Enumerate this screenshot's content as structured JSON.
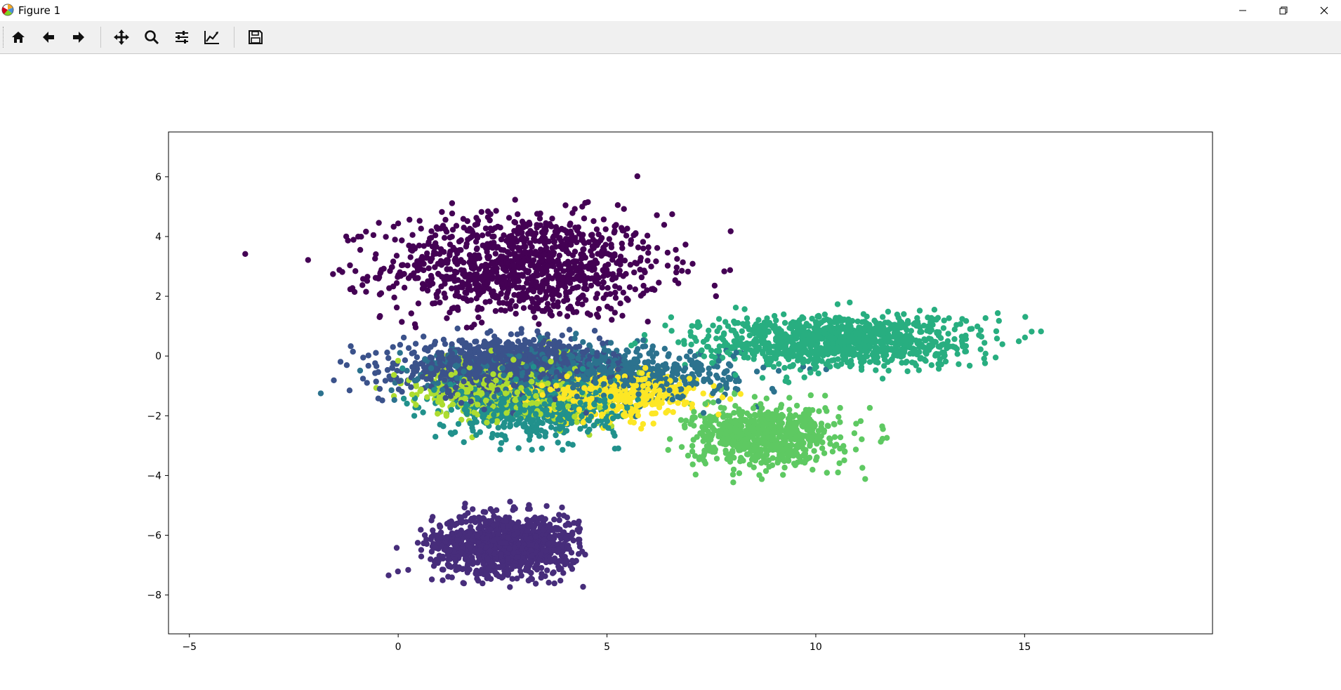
{
  "window": {
    "title": "Figure 1"
  },
  "toolbar": {
    "buttons": [
      {
        "name": "home-button",
        "icon": "home-icon"
      },
      {
        "name": "back-button",
        "icon": "arrow-left-icon"
      },
      {
        "name": "forward-button",
        "icon": "arrow-right-icon"
      },
      {
        "name": "pan-button",
        "icon": "move-icon"
      },
      {
        "name": "zoom-button",
        "icon": "magnifier-icon"
      },
      {
        "name": "subplots-button",
        "icon": "sliders-icon"
      },
      {
        "name": "edit-axis-button",
        "icon": "line-chart-icon"
      },
      {
        "name": "save-button",
        "icon": "floppy-disk-icon"
      }
    ]
  },
  "colors": {
    "series": [
      "#440154",
      "#472d7b",
      "#3b528b",
      "#2c728e",
      "#21918c",
      "#28ae80",
      "#5ec962",
      "#addc30",
      "#fde725"
    ]
  },
  "chart_data": {
    "type": "scatter",
    "title": "",
    "xlabel": "",
    "ylabel": "",
    "xlim": [
      -5.5,
      19.5
    ],
    "ylim": [
      -9.3,
      7.5
    ],
    "xticks": [
      -5,
      0,
      5,
      10,
      15
    ],
    "yticks": [
      -8,
      -6,
      -4,
      -2,
      0,
      2,
      4,
      6
    ],
    "grid": false,
    "legend": "none",
    "clusters": [
      {
        "color_index": 0,
        "count": 1100,
        "center": [
          3.0,
          3.0
        ],
        "spread": [
          3.0,
          1.6
        ],
        "x_range": [
          -3.8,
          8.5
        ],
        "y_range": [
          0.9,
          6.8
        ]
      },
      {
        "color_index": 1,
        "count": 1100,
        "center": [
          2.6,
          -6.3
        ],
        "spread": [
          1.6,
          0.9
        ],
        "x_range": [
          -2.7,
          4.5
        ],
        "y_range": [
          -8.6,
          -3.3
        ]
      },
      {
        "color_index": 2,
        "count": 1200,
        "center": [
          2.5,
          -0.4
        ],
        "spread": [
          2.2,
          0.8
        ],
        "x_range": [
          -2.6,
          6.0
        ],
        "y_range": [
          -4.5,
          2.0
        ]
      },
      {
        "color_index": 3,
        "count": 900,
        "center": [
          4.5,
          -0.6
        ],
        "spread": [
          3.2,
          0.8
        ],
        "x_range": [
          -3.6,
          12.5
        ],
        "y_range": [
          -3.5,
          1.5
        ]
      },
      {
        "color_index": 4,
        "count": 800,
        "center": [
          3.3,
          -1.6
        ],
        "spread": [
          1.8,
          1.0
        ],
        "x_range": [
          -4.3,
          6.0
        ],
        "y_range": [
          -4.6,
          1.5
        ]
      },
      {
        "color_index": 5,
        "count": 1000,
        "center": [
          10.5,
          0.5
        ],
        "spread": [
          3.0,
          0.8
        ],
        "x_range": [
          5.5,
          18.2
        ],
        "y_range": [
          -1.0,
          2.6
        ]
      },
      {
        "color_index": 6,
        "count": 700,
        "center": [
          8.8,
          -2.7
        ],
        "spread": [
          1.6,
          0.9
        ],
        "x_range": [
          6.0,
          13.3
        ],
        "y_range": [
          -4.9,
          -1.0
        ]
      },
      {
        "color_index": 7,
        "count": 600,
        "center": [
          2.7,
          -1.1
        ],
        "spread": [
          1.8,
          0.9
        ],
        "x_range": [
          -3.2,
          6.0
        ],
        "y_range": [
          -4.5,
          1.5
        ]
      },
      {
        "color_index": 8,
        "count": 600,
        "center": [
          5.0,
          -1.3
        ],
        "spread": [
          1.9,
          0.7
        ],
        "x_range": [
          1.5,
          11.5
        ],
        "y_range": [
          -4.0,
          0.7
        ]
      }
    ]
  }
}
